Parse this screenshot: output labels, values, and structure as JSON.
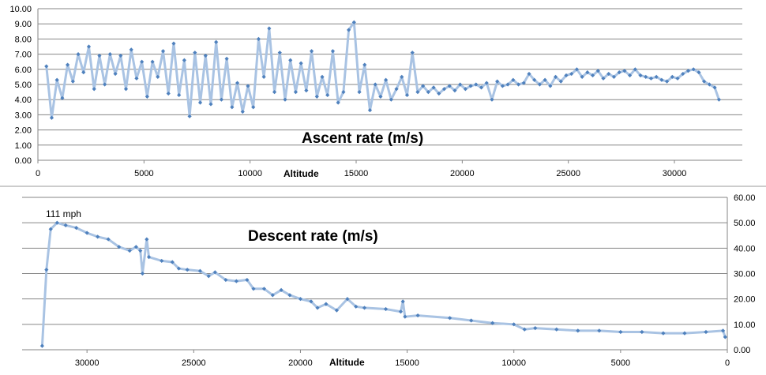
{
  "chart_data": [
    {
      "type": "line",
      "title": "Ascent rate (m/s)",
      "xlabel": "Altitude",
      "ylabel": "",
      "xlim": [
        0,
        33200
      ],
      "ylim": [
        0,
        10
      ],
      "x_ticks": [
        0,
        5000,
        10000,
        15000,
        20000,
        25000,
        30000
      ],
      "y_ticks": [
        "0.00",
        "1.00",
        "2.00",
        "3.00",
        "4.00",
        "5.00",
        "6.00",
        "7.00",
        "8.00",
        "9.00",
        "10.00"
      ],
      "grid": true,
      "colors": {
        "line": "#a9c3e3",
        "marker": "#4f81bd"
      },
      "series": [
        {
          "name": "Ascent rate",
          "x": [
            400,
            650,
            900,
            1150,
            1400,
            1650,
            1900,
            2150,
            2400,
            2650,
            2900,
            3150,
            3400,
            3650,
            3900,
            4150,
            4400,
            4650,
            4900,
            5150,
            5400,
            5650,
            5900,
            6150,
            6400,
            6650,
            6900,
            7150,
            7400,
            7650,
            7900,
            8150,
            8400,
            8650,
            8900,
            9150,
            9400,
            9650,
            9900,
            10150,
            10400,
            10650,
            10900,
            11150,
            11400,
            11650,
            11900,
            12150,
            12400,
            12650,
            12900,
            13150,
            13400,
            13650,
            13900,
            14150,
            14400,
            14650,
            14900,
            15150,
            15400,
            15650,
            15900,
            16150,
            16400,
            16650,
            16900,
            17150,
            17400,
            17650,
            17900,
            18150,
            18400,
            18650,
            18900,
            19150,
            19400,
            19650,
            19900,
            20150,
            20400,
            20650,
            20900,
            21150,
            21400,
            21650,
            21900,
            22150,
            22400,
            22650,
            22900,
            23150,
            23400,
            23650,
            23900,
            24150,
            24400,
            24650,
            24900,
            25150,
            25400,
            25650,
            25900,
            26150,
            26400,
            26650,
            26900,
            27150,
            27400,
            27650,
            27900,
            28150,
            28400,
            28650,
            28900,
            29150,
            29400,
            29650,
            29900,
            30150,
            30400,
            30650,
            30900,
            31150,
            31400,
            31650,
            31900,
            32100
          ],
          "y": [
            6.2,
            2.8,
            5.3,
            4.1,
            6.3,
            5.2,
            7.0,
            5.8,
            7.5,
            4.7,
            6.9,
            5.0,
            7.0,
            5.7,
            6.9,
            4.7,
            7.3,
            5.4,
            6.5,
            4.2,
            6.5,
            5.5,
            7.2,
            4.4,
            7.7,
            4.3,
            6.6,
            2.9,
            7.1,
            3.8,
            6.9,
            3.7,
            7.8,
            4.0,
            6.7,
            3.5,
            5.1,
            3.2,
            4.9,
            3.5,
            8.0,
            5.5,
            8.7,
            4.5,
            7.1,
            4.0,
            6.6,
            4.5,
            6.4,
            4.6,
            7.2,
            4.2,
            5.5,
            4.3,
            7.2,
            3.8,
            4.5,
            8.6,
            9.1,
            4.5,
            6.3,
            3.3,
            5.0,
            4.2,
            5.3,
            4.0,
            4.7,
            5.5,
            4.3,
            7.1,
            4.5,
            4.9,
            4.5,
            4.8,
            4.4,
            4.7,
            4.9,
            4.6,
            5.0,
            4.7,
            4.9,
            5.0,
            4.8,
            5.1,
            4.0,
            5.2,
            4.9,
            5.0,
            5.3,
            5.0,
            5.1,
            5.7,
            5.3,
            5.0,
            5.3,
            4.9,
            5.5,
            5.2,
            5.6,
            5.7,
            6.0,
            5.5,
            5.8,
            5.6,
            5.9,
            5.4,
            5.7,
            5.5,
            5.8,
            5.9,
            5.6,
            6.0,
            5.6,
            5.5,
            5.4,
            5.5,
            5.3,
            5.2,
            5.5,
            5.4,
            5.7,
            5.9,
            6.0,
            5.8,
            5.2,
            5.0,
            4.8,
            4.0
          ]
        }
      ]
    },
    {
      "type": "line",
      "title": "Descent rate (m/s)",
      "xlabel": "Altitude",
      "ylabel": "",
      "x_reversed": true,
      "xlim": [
        0,
        33040
      ],
      "ylim": [
        0,
        60
      ],
      "x_ticks": [
        30000,
        25000,
        20000,
        15000,
        10000,
        5000,
        0
      ],
      "y_ticks": [
        "0.00",
        "10.00",
        "20.00",
        "30.00",
        "40.00",
        "50.00",
        "60.00"
      ],
      "y_axis_side": "right",
      "grid": true,
      "annotation": "111 mph",
      "colors": {
        "line": "#a9c3e3",
        "marker": "#4f81bd"
      },
      "series": [
        {
          "name": "Descent rate",
          "x": [
            32100,
            31900,
            31700,
            31400,
            31000,
            30500,
            30000,
            29500,
            29000,
            28500,
            28000,
            27700,
            27500,
            27400,
            27200,
            27100,
            26500,
            26000,
            25700,
            25300,
            24700,
            24300,
            24000,
            23500,
            23000,
            22500,
            22200,
            21700,
            21300,
            20900,
            20500,
            20000,
            19500,
            19200,
            18800,
            18300,
            17800,
            17400,
            17000,
            16000,
            15300,
            15200,
            15100,
            14500,
            13000,
            12000,
            11000,
            10000,
            9500,
            9000,
            8000,
            7000,
            6000,
            5000,
            4000,
            3000,
            2000,
            1000,
            200,
            100
          ],
          "y": [
            1.5,
            31.5,
            47.5,
            50,
            49,
            48,
            46,
            44.5,
            43.5,
            40.5,
            39,
            40.5,
            39,
            30,
            43.5,
            36.5,
            35,
            34.5,
            32,
            31.5,
            31,
            29,
            30.5,
            27.5,
            27,
            27.5,
            24,
            24,
            21.5,
            23.5,
            21.5,
            20,
            19,
            16.5,
            18,
            15.5,
            20,
            17,
            16.5,
            16,
            15,
            19,
            13,
            13.5,
            12.5,
            11.5,
            10.5,
            10,
            8,
            8.5,
            8,
            7.5,
            7.5,
            7,
            7,
            6.5,
            6.5,
            7,
            7.5,
            5
          ]
        }
      ]
    }
  ]
}
